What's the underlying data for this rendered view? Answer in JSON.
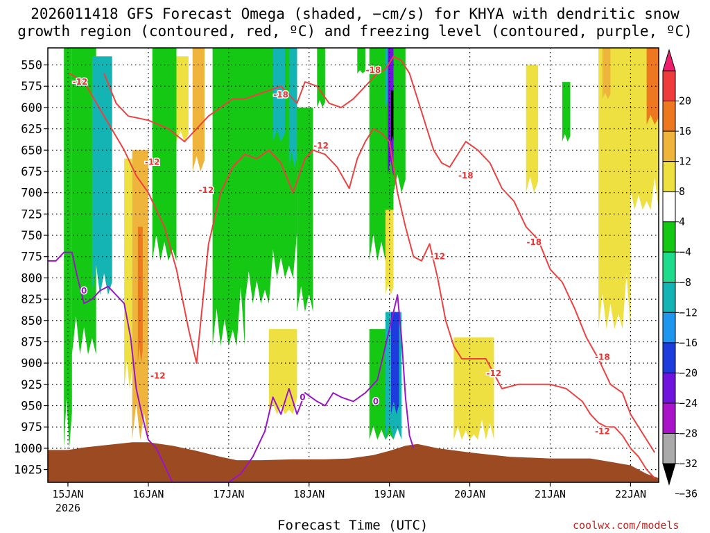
{
  "title_line1": "2026011418 GFS Forecast Omega (shaded, −cm/s) for KHYA with dendritic snow",
  "title_line2": "growth region (contoured, red, ºC) and freezing level (contoured, purple, ºC)",
  "xlabel": "Forecast Time (UTC)",
  "credit": "coolwx.com/models",
  "colors": {
    "terrain": "#9c4a22",
    "freezing_line": "#9a14c8",
    "dgz_line": "#ee4040",
    "grid": "#000000"
  },
  "chart_data": {
    "type": "heatmap",
    "y_axis": {
      "unit": "hPa",
      "range": [
        1040,
        530
      ],
      "ticks": [
        550,
        575,
        600,
        625,
        650,
        675,
        700,
        725,
        750,
        775,
        800,
        825,
        850,
        875,
        900,
        925,
        950,
        975,
        1000,
        1025
      ]
    },
    "x_axis": {
      "unit": "day of Jan 2026",
      "range": [
        14.75,
        22.35
      ],
      "ticks": [
        {
          "x": 15,
          "label": "15JAN",
          "sub": "2026"
        },
        {
          "x": 16,
          "label": "16JAN",
          "sub": ""
        },
        {
          "x": 17,
          "label": "17JAN",
          "sub": ""
        },
        {
          "x": 18,
          "label": "18JAN",
          "sub": ""
        },
        {
          "x": 19,
          "label": "19JAN",
          "sub": ""
        },
        {
          "x": 20,
          "label": "20JAN",
          "sub": ""
        },
        {
          "x": 21,
          "label": "21JAN",
          "sub": ""
        },
        {
          "x": 22,
          "label": "22JAN",
          "sub": ""
        }
      ]
    },
    "colorbar": {
      "labels": [
        "20",
        "16",
        "12",
        "8",
        "4",
        "−4",
        "−8",
        "−12",
        "−16",
        "−20",
        "−24",
        "−28",
        "−32",
        "−36"
      ],
      "colors": [
        "#ee1e6e",
        "#ee3c3c",
        "#ee7820",
        "#eeb43c",
        "#eee040",
        "#ffffff",
        "#14c814",
        "#1edc8c",
        "#14b4b4",
        "#1e96ee",
        "#1e3cdc",
        "#6e14dc",
        "#aa14c8",
        "#aaaaaa",
        "#000000"
      ]
    },
    "series": [
      {
        "name": "-12",
        "color": "#ee4040",
        "x": [
          15.02,
          15.2,
          15.45,
          15.7,
          15.85,
          16.0,
          16.2,
          16.35,
          16.5,
          16.6,
          16.75,
          16.9,
          17.05,
          17.2,
          17.35,
          17.5,
          17.65,
          17.8,
          17.95,
          18.05,
          18.2,
          18.35,
          18.5,
          18.6,
          18.7,
          18.8,
          18.9,
          19.0,
          19.1,
          19.2,
          19.3,
          19.4,
          19.5,
          19.6,
          19.7,
          19.8,
          19.9,
          20.0,
          20.2,
          20.4,
          20.6,
          20.8,
          21.0,
          21.2,
          21.4,
          21.5,
          21.6,
          21.7,
          21.8,
          21.9,
          22.0,
          22.1,
          22.2,
          22.3
        ],
        "y": [
          560,
          570,
          610,
          650,
          680,
          700,
          740,
          790,
          860,
          900,
          760,
          700,
          670,
          655,
          660,
          650,
          665,
          700,
          660,
          650,
          655,
          670,
          695,
          660,
          640,
          625,
          630,
          640,
          700,
          740,
          775,
          780,
          760,
          800,
          850,
          880,
          895,
          895,
          895,
          930,
          925,
          925,
          925,
          930,
          945,
          960,
          970,
          975,
          975,
          985,
          1000,
          1010,
          1025,
          1035
        ]
      },
      {
        "name": "-18",
        "color": "#ee4040",
        "x": [
          15.45,
          15.6,
          15.75,
          16.0,
          16.25,
          16.45,
          16.6,
          16.75,
          16.9,
          17.05,
          17.2,
          17.35,
          17.5,
          17.65,
          17.75,
          17.85,
          17.95,
          18.1,
          18.25,
          18.4,
          18.55,
          18.7,
          18.85,
          18.95,
          19.05,
          19.15,
          19.25,
          19.35,
          19.45,
          19.55,
          19.65,
          19.75,
          19.85,
          19.95,
          20.1,
          20.25,
          20.4,
          20.55,
          20.7,
          20.85,
          21.0,
          21.15,
          21.3,
          21.45,
          21.6,
          21.75,
          21.9,
          22.0,
          22.1,
          22.2,
          22.3
        ],
        "y": [
          560,
          595,
          610,
          615,
          625,
          640,
          625,
          610,
          600,
          590,
          590,
          585,
          580,
          575,
          585,
          595,
          570,
          575,
          595,
          600,
          590,
          575,
          560,
          555,
          540,
          545,
          560,
          590,
          620,
          650,
          665,
          670,
          655,
          640,
          650,
          665,
          695,
          710,
          740,
          755,
          790,
          805,
          835,
          870,
          895,
          925,
          935,
          960,
          975,
          990,
          1005
        ]
      },
      {
        "name": "0",
        "color": "#9a14c8",
        "x": [
          14.75,
          14.85,
          14.95,
          15.05,
          15.12,
          15.2,
          15.3,
          15.4,
          15.5,
          15.6,
          15.7,
          15.78,
          15.85,
          15.92,
          16.0,
          16.1,
          16.3,
          16.6,
          16.8,
          17.0,
          17.15,
          17.3,
          17.45,
          17.55,
          17.65,
          17.75,
          17.85,
          17.95,
          18.1,
          18.2,
          18.3,
          18.4,
          18.55,
          18.7,
          18.85,
          19.0,
          19.1,
          19.15,
          19.2,
          19.25,
          19.3
        ],
        "y": [
          780,
          780,
          770,
          770,
          800,
          830,
          825,
          815,
          810,
          820,
          830,
          870,
          930,
          960,
          990,
          1000,
          1040,
          1040,
          1040,
          1040,
          1030,
          1010,
          980,
          940,
          960,
          930,
          960,
          935,
          945,
          950,
          935,
          940,
          945,
          935,
          920,
          860,
          820,
          870,
          940,
          985,
          1000
        ]
      }
    ],
    "contour_labels": [
      {
        "text": "-12",
        "x": 15.15,
        "y": 570
      },
      {
        "text": "-12",
        "x": 16.05,
        "y": 664
      },
      {
        "text": "-12",
        "x": 16.72,
        "y": 697
      },
      {
        "text": "-12",
        "x": 16.12,
        "y": 915
      },
      {
        "text": "-12",
        "x": 18.15,
        "y": 645
      },
      {
        "text": "-12",
        "x": 19.6,
        "y": 775
      },
      {
        "text": "-12",
        "x": 20.3,
        "y": 912
      },
      {
        "text": "-12",
        "x": 21.65,
        "y": 980
      },
      {
        "text": "-18",
        "x": 17.65,
        "y": 585
      },
      {
        "text": "-18",
        "x": 18.8,
        "y": 556
      },
      {
        "text": "-18",
        "x": 19.95,
        "y": 680
      },
      {
        "text": "-18",
        "x": 20.8,
        "y": 758
      },
      {
        "text": "-18",
        "x": 21.65,
        "y": 893
      },
      {
        "text": "0",
        "x": 15.2,
        "y": 815
      },
      {
        "text": "0",
        "x": 17.92,
        "y": 940
      },
      {
        "text": "0",
        "x": 18.83,
        "y": 945
      }
    ],
    "terrain": {
      "x": [
        14.75,
        15.0,
        15.2,
        15.4,
        15.6,
        15.8,
        16.0,
        16.3,
        16.6,
        16.9,
        17.1,
        17.4,
        17.8,
        18.2,
        18.5,
        18.8,
        19.0,
        19.2,
        19.35,
        19.6,
        20.0,
        20.5,
        21.0,
        21.5,
        22.0,
        22.2,
        22.35
      ],
      "p": [
        1002,
        1002,
        999,
        997,
        995,
        993,
        993,
        997,
        1003,
        1010,
        1014,
        1014,
        1013,
        1013,
        1012,
        1008,
        1003,
        997,
        995,
        1000,
        1005,
        1010,
        1012,
        1012,
        1020,
        1030,
        1035
      ]
    },
    "omega_features": [
      {
        "x0": 15.05,
        "x1": 15.35,
        "p_top": 530,
        "p_bot": 890,
        "level": -8
      },
      {
        "x0": 15.3,
        "x1": 15.55,
        "p_top": 540,
        "p_bot": 820,
        "level": -12
      },
      {
        "x0": 14.95,
        "x1": 15.05,
        "p_top": 530,
        "p_bot": 1000,
        "level": -8
      },
      {
        "x0": 15.7,
        "x1": 15.8,
        "p_top": 660,
        "p_bot": 930,
        "level": 4
      },
      {
        "x0": 15.8,
        "x1": 16.0,
        "p_top": 650,
        "p_bot": 990,
        "level": 8
      },
      {
        "x0": 15.87,
        "x1": 15.93,
        "p_top": 740,
        "p_bot": 900,
        "level": 12
      },
      {
        "x0": 16.05,
        "x1": 16.35,
        "p_top": 530,
        "p_bot": 780,
        "level": -8
      },
      {
        "x0": 16.35,
        "x1": 16.5,
        "p_top": 540,
        "p_bot": 640,
        "level": 4
      },
      {
        "x0": 16.55,
        "x1": 16.7,
        "p_top": 530,
        "p_bot": 675,
        "level": 8
      },
      {
        "x0": 16.8,
        "x1": 17.2,
        "p_top": 530,
        "p_bot": 880,
        "level": -8
      },
      {
        "x0": 17.2,
        "x1": 17.55,
        "p_top": 530,
        "p_bot": 830,
        "level": -8
      },
      {
        "x0": 17.5,
        "x1": 17.85,
        "p_top": 530,
        "p_bot": 800,
        "level": -8
      },
      {
        "x0": 17.55,
        "x1": 17.7,
        "p_top": 530,
        "p_bot": 640,
        "level": -12
      },
      {
        "x0": 17.75,
        "x1": 17.85,
        "p_top": 530,
        "p_bot": 670,
        "level": -12
      },
      {
        "x0": 17.85,
        "x1": 18.05,
        "p_top": 600,
        "p_bot": 840,
        "level": -8
      },
      {
        "x0": 17.5,
        "x1": 17.85,
        "p_top": 860,
        "p_bot": 960,
        "level": 4
      },
      {
        "x0": 18.1,
        "x1": 18.2,
        "p_top": 530,
        "p_bot": 600,
        "level": -8
      },
      {
        "x0": 18.6,
        "x1": 18.7,
        "p_top": 530,
        "p_bot": 560,
        "level": -8
      },
      {
        "x0": 18.75,
        "x1": 19.05,
        "p_top": 530,
        "p_bot": 780,
        "level": -8
      },
      {
        "x0": 18.95,
        "x1": 19.05,
        "p_top": 530,
        "p_bot": 600,
        "level": -12
      },
      {
        "x0": 18.98,
        "x1": 19.08,
        "p_top": 530,
        "p_bot": 680,
        "level": -24
      },
      {
        "x0": 19.02,
        "x1": 19.07,
        "p_top": 580,
        "p_bot": 640,
        "level": -36
      },
      {
        "x0": 19.05,
        "x1": 19.2,
        "p_top": 530,
        "p_bot": 700,
        "level": -8
      },
      {
        "x0": 18.75,
        "x1": 19.05,
        "p_top": 860,
        "p_bot": 990,
        "level": -8
      },
      {
        "x0": 18.95,
        "x1": 19.15,
        "p_top": 840,
        "p_bot": 990,
        "level": -12
      },
      {
        "x0": 19.02,
        "x1": 19.12,
        "p_top": 840,
        "p_bot": 960,
        "level": -20
      },
      {
        "x0": 18.95,
        "x1": 19.05,
        "p_top": 720,
        "p_bot": 820,
        "level": 4
      },
      {
        "x0": 19.8,
        "x1": 20.3,
        "p_top": 870,
        "p_bot": 990,
        "level": 4
      },
      {
        "x0": 20.7,
        "x1": 20.85,
        "p_top": 550,
        "p_bot": 700,
        "level": 4
      },
      {
        "x0": 21.15,
        "x1": 21.25,
        "p_top": 570,
        "p_bot": 640,
        "level": -8
      },
      {
        "x0": 21.6,
        "x1": 22.0,
        "p_top": 530,
        "p_bot": 860,
        "level": 4
      },
      {
        "x0": 21.95,
        "x1": 22.35,
        "p_top": 530,
        "p_bot": 720,
        "level": 4
      },
      {
        "x0": 21.65,
        "x1": 21.75,
        "p_top": 530,
        "p_bot": 590,
        "level": 8
      },
      {
        "x0": 22.2,
        "x1": 22.35,
        "p_top": 530,
        "p_bot": 620,
        "level": 12
      }
    ]
  }
}
